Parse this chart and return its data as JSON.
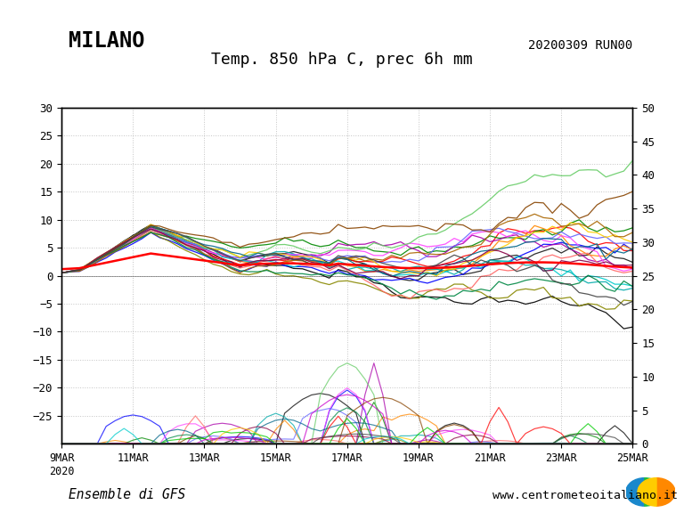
{
  "title_left": "MILANO",
  "title_right": "20200309 RUN00",
  "subtitle": "Temp. 850 hPa C, prec 6h mm",
  "footer_left": "Ensemble di GFS",
  "footer_right": "www.centrometeoitaliano.it",
  "x_tick_labels": [
    "9MAR\n2020",
    "11MAR",
    "13MAR",
    "15MAR",
    "17MAR",
    "19MAR",
    "21MAR",
    "23MAR",
    "25MAR"
  ],
  "x_tick_positions": [
    0,
    48,
    96,
    144,
    192,
    240,
    288,
    336,
    384
  ],
  "ylim_left": [
    -30,
    30
  ],
  "ylim_right": [
    0,
    50
  ],
  "y_ticks_left": [
    -25,
    -20,
    -15,
    -10,
    -5,
    0,
    5,
    10,
    15,
    20,
    25,
    30
  ],
  "y_ticks_right": [
    0,
    5,
    10,
    15,
    20,
    25,
    30,
    35,
    40,
    45,
    50
  ],
  "background_color": "#ffffff",
  "grid_color": "#aaaaaa",
  "n_members": 21,
  "seed": 42,
  "colors_temp": [
    "#000000",
    "#1a1a1a",
    "#ff0000",
    "#008800",
    "#0000ff",
    "#ff8800",
    "#aa00aa",
    "#00aaaa",
    "#888800",
    "#ff44ff",
    "#00cccc",
    "#ff6666",
    "#6666ff",
    "#66cc66",
    "#ffcc00",
    "#aa6600",
    "#006688",
    "#884400",
    "#008844",
    "#880044",
    "#444444"
  ],
  "colors_prec": [
    "#000000",
    "#ff8800",
    "#008800",
    "#0000ff",
    "#aa00aa",
    "#00aaaa",
    "#888800",
    "#ff44ff",
    "#ff6666",
    "#6666ff",
    "#66cc66",
    "#884400",
    "#006688",
    "#008844",
    "#880044",
    "#ffcc00",
    "#ff0000",
    "#00cc00",
    "#cc00cc",
    "#00cccc",
    "#444444"
  ]
}
